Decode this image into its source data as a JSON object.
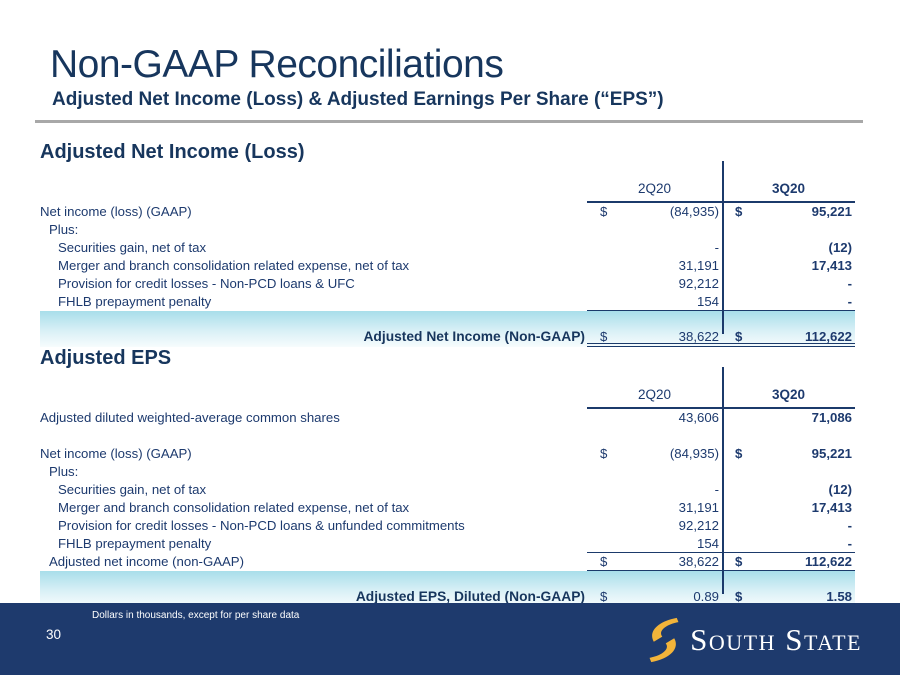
{
  "header": {
    "title": "Non-GAAP Reconciliations",
    "subtitle": "Adjusted Net Income (Loss) & Adjusted Earnings Per Share (“EPS”)"
  },
  "colors": {
    "navy_text": "#1d3a6e",
    "heading_navy": "#17365d",
    "line_navy": "#1b3a6b",
    "band_top": "#a8deea",
    "band_bottom": "#f7fcfd",
    "rule_gray": "#a8a8a8",
    "footer_navy": "#1e3a6d",
    "logo_gold": "#f3b43a"
  },
  "tables": [
    {
      "section_title": "Adjusted Net Income (Loss)",
      "columns": [
        "2Q20",
        "3Q20"
      ],
      "rows": [
        {
          "label": "Net income (loss) (GAAP)",
          "indent": 0,
          "cur1": "$",
          "v1": "(84,935)",
          "cur2": "$",
          "v2": "95,221"
        },
        {
          "label": "Plus:",
          "indent": 1
        },
        {
          "label": "Securities gain, net of tax",
          "indent": 2,
          "v1": "-",
          "v2": "(12)"
        },
        {
          "label": "Merger and branch consolidation related expense, net of tax",
          "indent": 2,
          "v1": "31,191",
          "v2": "17,413"
        },
        {
          "label": "Provision for credit losses - Non-PCD loans & UFC",
          "indent": 2,
          "v1": "92,212",
          "v2": "-"
        },
        {
          "label": "FHLB prepayment penalty",
          "indent": 2,
          "v1": "154",
          "v2": "-",
          "underline": true
        }
      ],
      "total": {
        "label": "Adjusted Net Income (Non-GAAP)",
        "cur1": "$",
        "v1": "38,622",
        "cur2": "$",
        "v2": "112,622"
      }
    },
    {
      "section_title": "Adjusted EPS",
      "columns": [
        "2Q20",
        "3Q20"
      ],
      "rows": [
        {
          "label": "Adjusted diluted weighted-average common shares",
          "indent": 0,
          "v1": "43,606",
          "v2": "71,086"
        },
        {
          "label": "",
          "indent": 0
        },
        {
          "label": "Net income (loss) (GAAP)",
          "indent": 0,
          "cur1": "$",
          "v1": "(84,935)",
          "cur2": "$",
          "v2": "95,221"
        },
        {
          "label": "Plus:",
          "indent": 1
        },
        {
          "label": "Securities gain, net of tax",
          "indent": 2,
          "v1": "-",
          "v2": "(12)"
        },
        {
          "label": "Merger and branch consolidation related expense, net of tax",
          "indent": 2,
          "v1": "31,191",
          "v2": "17,413"
        },
        {
          "label": "Provision for credit losses - Non-PCD loans & unfunded commitments",
          "indent": 2,
          "v1": "92,212",
          "v2": "-"
        },
        {
          "label": "FHLB prepayment penalty",
          "indent": 2,
          "v1": "154",
          "v2": "-",
          "underline": true
        },
        {
          "label": "Adjusted net income (non-GAAP)",
          "indent": 1,
          "cur1": "$",
          "v1": "38,622",
          "cur2": "$",
          "v2": "112,622",
          "underline": true
        }
      ],
      "total": {
        "label": "Adjusted EPS, Diluted (Non-GAAP)",
        "cur1": "$",
        "v1": "0.89",
        "cur2": "$",
        "v2": "1.58"
      }
    }
  ],
  "footer": {
    "footnote": "Dollars in thousands, except for per share data",
    "page_number": "30",
    "logo_text": "South State"
  }
}
